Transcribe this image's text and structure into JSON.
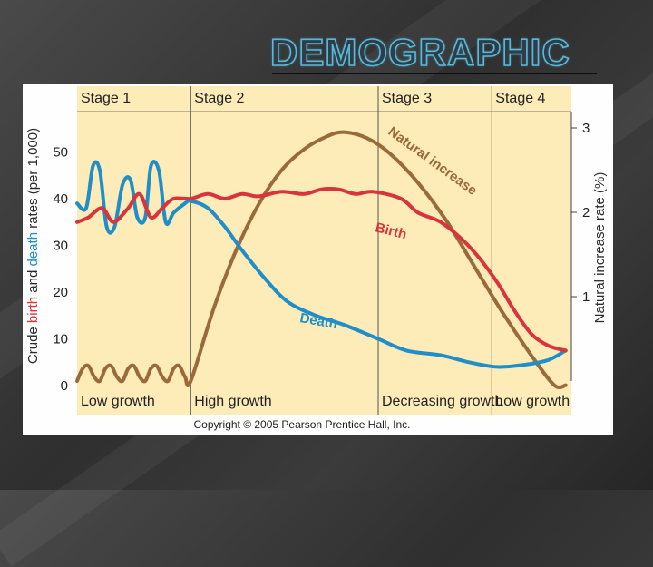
{
  "slide": {
    "title": "DEMOGRAPHIC"
  },
  "chart_data": {
    "type": "line",
    "stages": [
      "Stage 1",
      "Stage 2",
      "Stage 3",
      "Stage 4"
    ],
    "growth_labels": [
      "Low growth",
      "High growth",
      "Decreasing growth",
      "Low growth"
    ],
    "left_axis": {
      "label_parts": [
        "Crude ",
        "birth",
        " and ",
        "death",
        " rates (per 1,000)"
      ],
      "ticks": [
        0,
        10,
        20,
        30,
        40,
        50
      ],
      "ylim": [
        0,
        60
      ]
    },
    "right_axis": {
      "label": "Natural increase rate (%)",
      "ticks": [
        1,
        2,
        3
      ],
      "ylim": [
        0,
        3.2
      ]
    },
    "stage_boundaries": [
      1.0,
      2.65,
      3.65
    ],
    "xlim": [
      0,
      4.35
    ],
    "series": [
      {
        "name": "Birth",
        "color": "#d8343b",
        "axis": "left",
        "points": [
          [
            0,
            35
          ],
          [
            0.1,
            36
          ],
          [
            0.22,
            38
          ],
          [
            0.32,
            35
          ],
          [
            0.45,
            38
          ],
          [
            0.55,
            41
          ],
          [
            0.65,
            36
          ],
          [
            0.75,
            38
          ],
          [
            0.85,
            40
          ],
          [
            1.0,
            40
          ],
          [
            1.15,
            41
          ],
          [
            1.3,
            40
          ],
          [
            1.45,
            41
          ],
          [
            1.6,
            40.5
          ],
          [
            1.8,
            41.5
          ],
          [
            2.0,
            41
          ],
          [
            2.15,
            42
          ],
          [
            2.3,
            42
          ],
          [
            2.45,
            41
          ],
          [
            2.6,
            41.5
          ],
          [
            2.85,
            40
          ],
          [
            3.0,
            37
          ],
          [
            3.2,
            35
          ],
          [
            3.4,
            31
          ],
          [
            3.55,
            27
          ],
          [
            3.7,
            22
          ],
          [
            3.85,
            16
          ],
          [
            4.0,
            11
          ],
          [
            4.15,
            8.5
          ],
          [
            4.3,
            7.5
          ]
        ]
      },
      {
        "name": "Death",
        "color": "#1f8ec9",
        "axis": "left",
        "points": [
          [
            0,
            39
          ],
          [
            0.08,
            38
          ],
          [
            0.14,
            47
          ],
          [
            0.2,
            46
          ],
          [
            0.26,
            34
          ],
          [
            0.33,
            34
          ],
          [
            0.4,
            43
          ],
          [
            0.47,
            44
          ],
          [
            0.53,
            36
          ],
          [
            0.6,
            36
          ],
          [
            0.65,
            47
          ],
          [
            0.72,
            46
          ],
          [
            0.78,
            35
          ],
          [
            0.85,
            37
          ],
          [
            0.95,
            39
          ],
          [
            1.0,
            39.5
          ],
          [
            1.15,
            38
          ],
          [
            1.3,
            34
          ],
          [
            1.45,
            29
          ],
          [
            1.65,
            23
          ],
          [
            1.85,
            18
          ],
          [
            2.1,
            15
          ],
          [
            2.35,
            13
          ],
          [
            2.65,
            10
          ],
          [
            2.9,
            7.5
          ],
          [
            3.2,
            6.5
          ],
          [
            3.45,
            5
          ],
          [
            3.7,
            4
          ],
          [
            3.95,
            4.5
          ],
          [
            4.15,
            5.5
          ],
          [
            4.3,
            7.5
          ]
        ]
      },
      {
        "name": "Natural increase",
        "color": "#9a6a3a",
        "axis": "right",
        "points": [
          [
            0,
            0.0
          ],
          [
            0.05,
            0.15
          ],
          [
            0.1,
            0.18
          ],
          [
            0.15,
            0.05
          ],
          [
            0.2,
            0.0
          ],
          [
            0.25,
            0.15
          ],
          [
            0.3,
            0.18
          ],
          [
            0.35,
            0.05
          ],
          [
            0.4,
            0.0
          ],
          [
            0.45,
            0.15
          ],
          [
            0.5,
            0.18
          ],
          [
            0.55,
            0.05
          ],
          [
            0.6,
            0.0
          ],
          [
            0.65,
            0.15
          ],
          [
            0.7,
            0.18
          ],
          [
            0.75,
            0.05
          ],
          [
            0.8,
            0.0
          ],
          [
            0.85,
            0.15
          ],
          [
            0.9,
            0.18
          ],
          [
            0.95,
            0.05
          ],
          [
            1.0,
            0.0
          ],
          [
            1.2,
            0.85
          ],
          [
            1.4,
            1.55
          ],
          [
            1.6,
            2.1
          ],
          [
            1.8,
            2.5
          ],
          [
            2.0,
            2.75
          ],
          [
            2.2,
            2.9
          ],
          [
            2.35,
            2.95
          ],
          [
            2.55,
            2.88
          ],
          [
            2.75,
            2.7
          ],
          [
            3.0,
            2.35
          ],
          [
            3.25,
            1.9
          ],
          [
            3.5,
            1.35
          ],
          [
            3.75,
            0.8
          ],
          [
            4.0,
            0.3
          ],
          [
            4.2,
            -0.05
          ],
          [
            4.3,
            -0.05
          ]
        ]
      }
    ]
  },
  "copyright": "Copyright © 2005 Pearson Prentice Hall, Inc.",
  "colors": {
    "panel_bg": "#fdebb8",
    "birth": "#d8343b",
    "death": "#1f8ec9",
    "natural": "#9a6a3a"
  }
}
